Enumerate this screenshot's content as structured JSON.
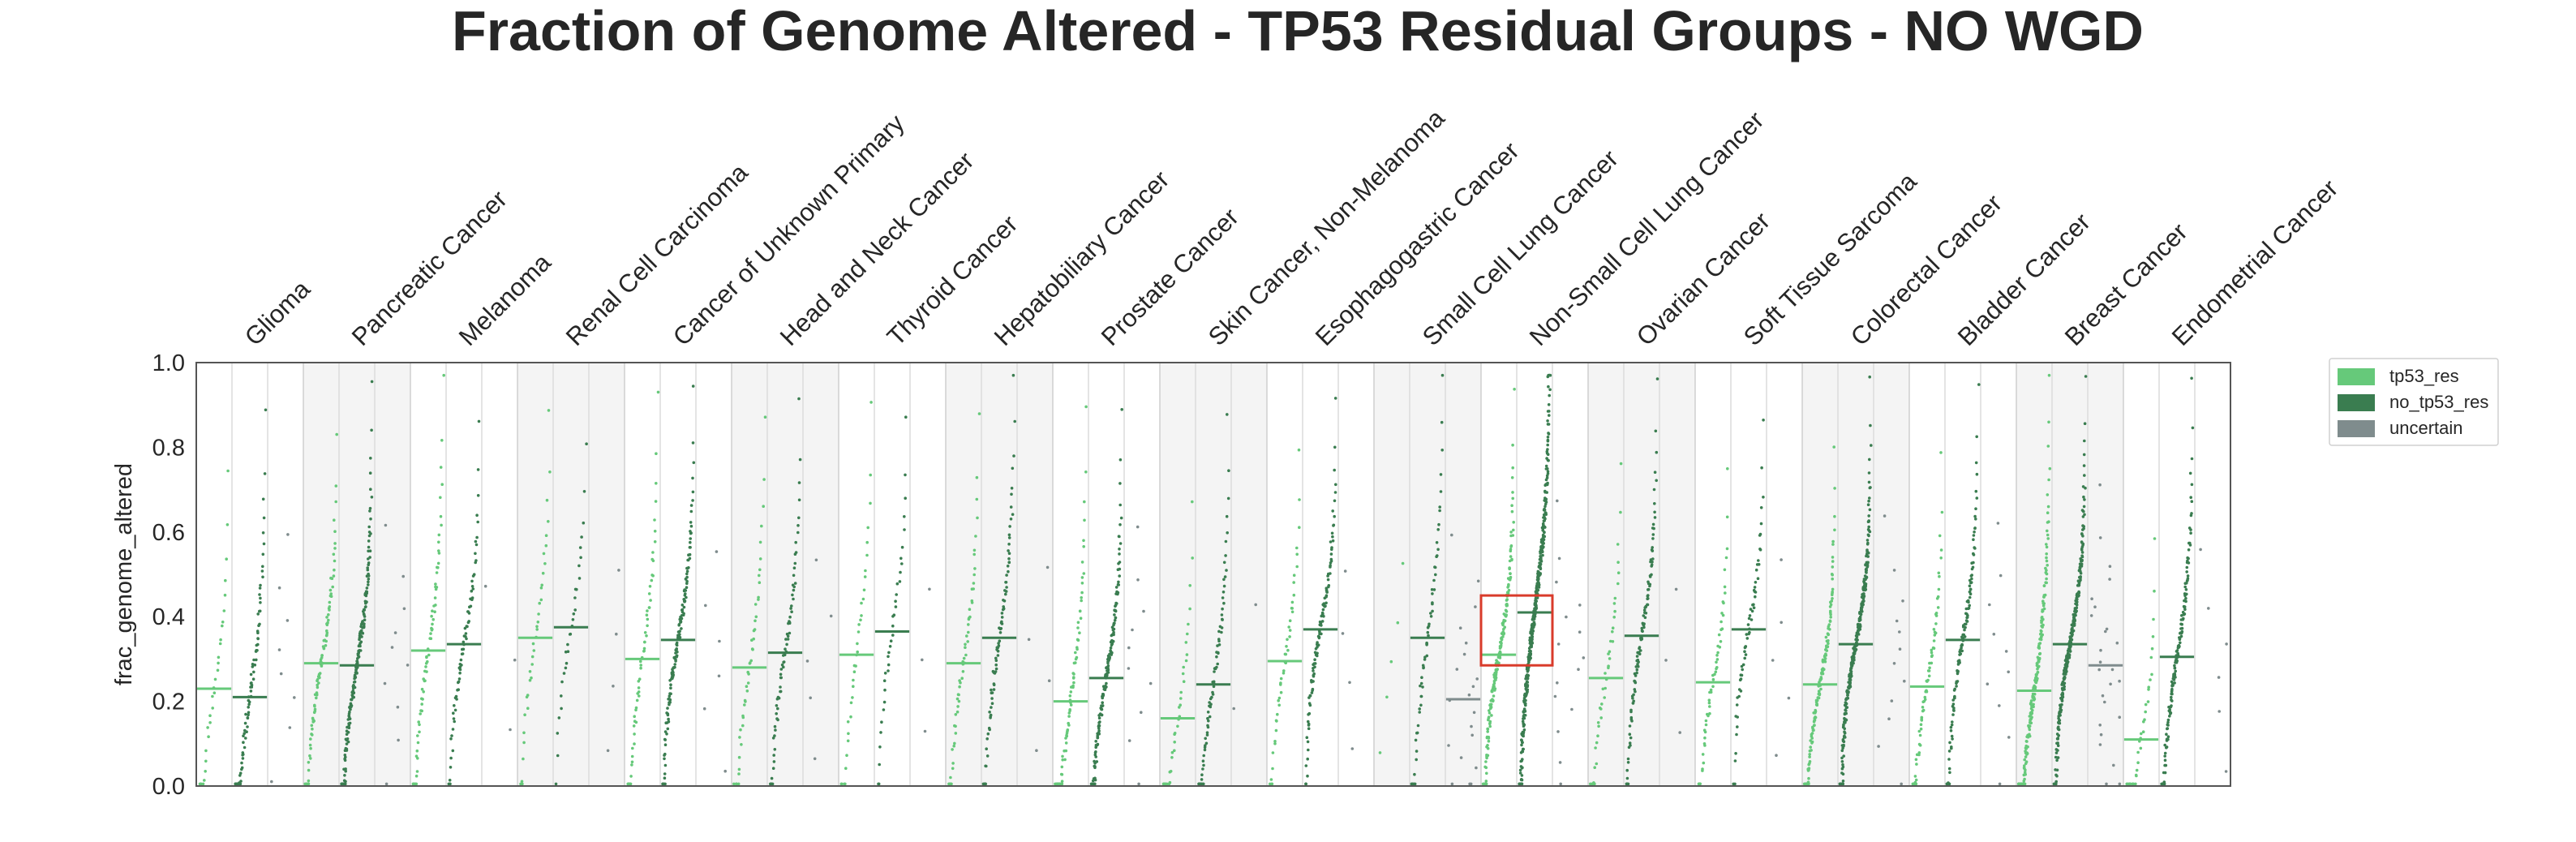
{
  "chart_data": {
    "type": "scatter",
    "title": "Fraction of Genome Altered - TP53 Residual Groups - NO WGD",
    "xlabel": "",
    "ylabel": "frac_genome_altered",
    "ylim": [
      0.0,
      1.0
    ],
    "yticks": [
      "0.0",
      "0.2",
      "0.4",
      "0.6",
      "0.8",
      "1.0"
    ],
    "grid": false,
    "legend_position": "right",
    "categories": [
      "Glioma",
      "Pancreatic Cancer",
      "Melanoma",
      "Renal Cell Carcinoma",
      "Cancer of Unknown Primary",
      "Head and Neck Cancer",
      "Thyroid Cancer",
      "Hepatobiliary Cancer",
      "Prostate Cancer",
      "Skin Cancer, Non-Melanoma",
      "Esophagogastric Cancer",
      "Small Cell Lung Cancer",
      "Non-Small Cell Lung Cancer",
      "Ovarian Cancer",
      "Soft Tissue Sarcoma",
      "Colorectal Cancer",
      "Bladder Cancer",
      "Breast Cancer",
      "Endometrial Cancer"
    ],
    "series": [
      {
        "name": "tp53_res",
        "color": "#66c97a",
        "medians": [
          0.23,
          0.29,
          0.32,
          0.35,
          0.3,
          0.28,
          0.31,
          0.29,
          0.2,
          0.16,
          0.295,
          null,
          0.31,
          0.255,
          0.245,
          0.24,
          0.235,
          0.225,
          0.11
        ],
        "counts": [
          30,
          90,
          70,
          35,
          60,
          45,
          35,
          55,
          80,
          35,
          45,
          5,
          180,
          40,
          55,
          140,
          70,
          200,
          35
        ]
      },
      {
        "name": "no_tp53_res",
        "color": "#3a7d50",
        "medians": [
          0.21,
          0.285,
          0.335,
          0.375,
          0.345,
          0.315,
          0.365,
          0.35,
          0.255,
          0.24,
          0.37,
          0.35,
          0.41,
          0.355,
          0.37,
          0.335,
          0.345,
          0.335,
          0.305
        ],
        "counts": [
          90,
          180,
          70,
          30,
          140,
          70,
          35,
          85,
          160,
          80,
          110,
          60,
          400,
          110,
          60,
          280,
          120,
          280,
          150
        ]
      },
      {
        "name": "uncertain",
        "color": "#7f8c8d",
        "medians": [
          null,
          null,
          null,
          null,
          null,
          null,
          null,
          null,
          null,
          null,
          null,
          0.205,
          null,
          null,
          null,
          null,
          null,
          0.285,
          null
        ],
        "counts": [
          8,
          10,
          3,
          4,
          6,
          5,
          3,
          4,
          10,
          2,
          4,
          20,
          15,
          3,
          5,
          12,
          10,
          25,
          6
        ]
      }
    ],
    "highlight": {
      "category": "Non-Small Cell Lung Cancer",
      "y_range": [
        0.285,
        0.45
      ],
      "color": "#d93b2b"
    }
  },
  "legend": {
    "items": [
      {
        "label": "tp53_res",
        "color": "#66c97a"
      },
      {
        "label": "no_tp53_res",
        "color": "#3a7d50"
      },
      {
        "label": "uncertain",
        "color": "#7f8c8d"
      }
    ]
  }
}
